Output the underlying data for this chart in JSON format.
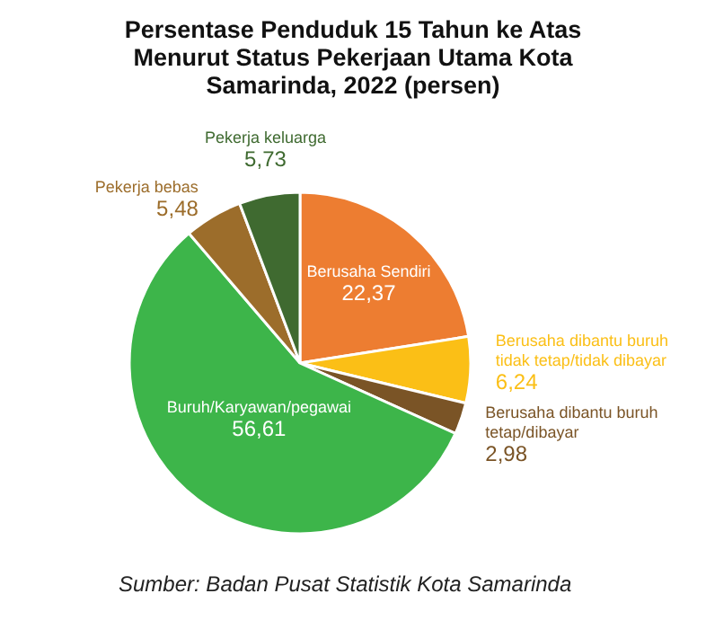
{
  "chart_data": {
    "type": "pie",
    "title": "Persentase Penduduk 15 Tahun ke Atas Menurut Status Pekerjaan Utama Kota Samarinda, 2022 (persen)",
    "categories": [
      "Berusaha Sendiri",
      "Berusaha dibantu buruh tidak tetap/tidak dibayar",
      "Berusaha dibantu buruh tetap/dibayar",
      "Buruh/Karyawan/pegawai",
      "Pekerja bebas",
      "Pekerja keluarga"
    ],
    "values": [
      22.37,
      6.24,
      2.98,
      56.61,
      5.48,
      5.73
    ],
    "value_labels": [
      "22,37",
      "6,24",
      "2,98",
      "56,61",
      "5,48",
      "5,73"
    ],
    "colors": [
      "#ed7d31",
      "#fbbf16",
      "#7a5426",
      "#3db54a",
      "#9c6d2b",
      "#3f6a30"
    ],
    "annotations": [
      "Sumber: Badan Pusat Statistik Kota Samarinda"
    ]
  }
}
